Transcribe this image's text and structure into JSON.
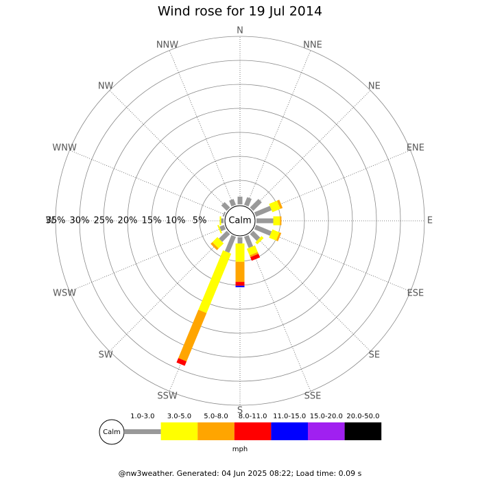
{
  "chart_data": {
    "type": "wind_rose",
    "title": "Wind rose for 19 Jul 2014",
    "directions": [
      "N",
      "NNE",
      "NE",
      "ENE",
      "E",
      "ESE",
      "SE",
      "SSE",
      "S",
      "SSW",
      "SW",
      "WSW",
      "W",
      "WNW",
      "NW",
      "NNW"
    ],
    "calm_label": "Calm",
    "unit_label": "mph",
    "rlim": [
      0,
      35
    ],
    "rticks": [
      {
        "value": 5,
        "label": "5%"
      },
      {
        "value": 10,
        "label": "10%"
      },
      {
        "value": 15,
        "label": "15%"
      },
      {
        "value": 20,
        "label": "20%"
      },
      {
        "value": 25,
        "label": "25%"
      },
      {
        "value": 30,
        "label": "30%"
      },
      {
        "value": 35,
        "label": "35%"
      }
    ],
    "series": [
      {
        "name": "1.0-3.0",
        "color": "#999999",
        "values": [
          1.6,
          1.7,
          2.5,
          3.5,
          3.5,
          3.5,
          2.0,
          2.5,
          1.3,
          3.6,
          2.3,
          1.0,
          0.5,
          0.3,
          1.6,
          1.3
        ]
      },
      {
        "name": "3.0-5.0",
        "color": "#ffff00",
        "values": [
          0,
          0,
          0,
          1.8,
          1.4,
          1.6,
          0.6,
          1.5,
          3.8,
          13.4,
          1.5,
          0.3,
          0.3,
          0,
          0,
          0
        ]
      },
      {
        "name": "5.0-8.0",
        "color": "#ffa500",
        "values": [
          0,
          0,
          0,
          0.5,
          0.3,
          0.4,
          0,
          0.4,
          4.2,
          10.9,
          0.5,
          0,
          0,
          0,
          0,
          0
        ]
      },
      {
        "name": "8.0-11.0",
        "color": "#ff0000",
        "values": [
          0,
          0,
          0,
          0,
          0,
          0,
          0,
          0.8,
          0.8,
          1.0,
          0,
          0,
          0,
          0,
          0,
          0
        ]
      },
      {
        "name": "11.0-15.0",
        "color": "#0000ff",
        "values": [
          0,
          0,
          0,
          0,
          0,
          0,
          0,
          0,
          0.3,
          0,
          0,
          0,
          0,
          0,
          0,
          0
        ]
      },
      {
        "name": "15.0-20.0",
        "color": "#a020f0",
        "values": [
          0,
          0,
          0,
          0,
          0,
          0,
          0,
          0,
          0,
          0,
          0,
          0,
          0,
          0,
          0,
          0
        ]
      },
      {
        "name": "20.0-50.0",
        "color": "#000000",
        "values": [
          0,
          0,
          0,
          0,
          0,
          0,
          0,
          0,
          0,
          0,
          0,
          0,
          0,
          0,
          0,
          0
        ]
      }
    ],
    "footer": "@nw3weather. Generated: 04 Jun 2025 08:22; Load time: 0.09 s"
  }
}
